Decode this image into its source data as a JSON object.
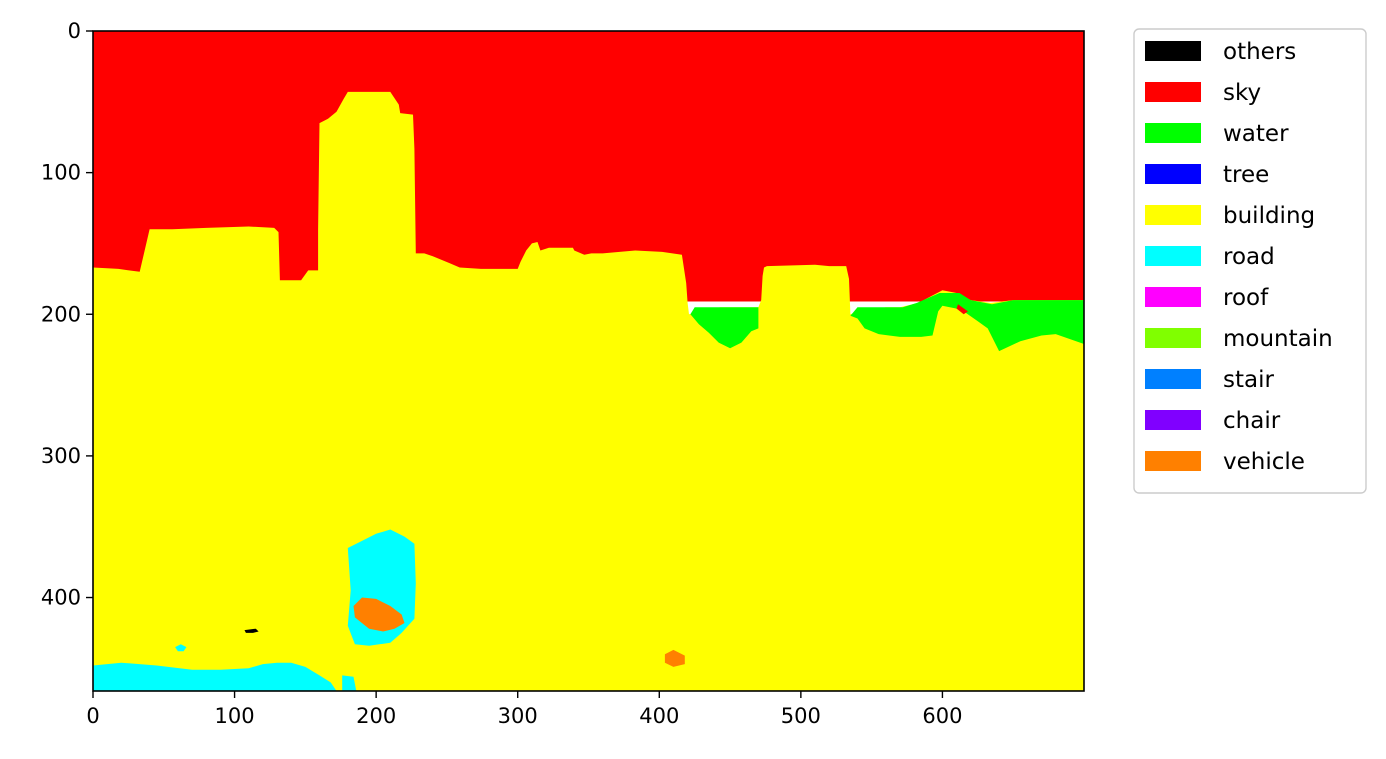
{
  "chart_data": {
    "type": "heatmap",
    "title": "",
    "xlabel": "",
    "ylabel": "",
    "xlim": [
      0,
      700
    ],
    "ylim": [
      466,
      0
    ],
    "y_axis_inverted": true,
    "grid": false,
    "legend_placement": "outside-right-top",
    "x_ticks": [
      "0",
      "100",
      "200",
      "300",
      "400",
      "500",
      "600"
    ],
    "y_ticks": [
      "0",
      "100",
      "200",
      "300",
      "400"
    ],
    "classes": [
      {
        "name": "others",
        "color": "#000000"
      },
      {
        "name": "sky",
        "color": "#ff0000"
      },
      {
        "name": "water",
        "color": "#00ff00"
      },
      {
        "name": "tree",
        "color": "#0000ff"
      },
      {
        "name": "building",
        "color": "#ffff00"
      },
      {
        "name": "road",
        "color": "#00ffff"
      },
      {
        "name": "roof",
        "color": "#ff00ff"
      },
      {
        "name": "mountain",
        "color": "#80ff00"
      },
      {
        "name": "stair",
        "color": "#0080ff"
      },
      {
        "name": "chair",
        "color": "#8000ff"
      },
      {
        "name": "vehicle",
        "color": "#ff8000"
      }
    ],
    "regions": [
      {
        "class": "sky",
        "points": [
          [
            0,
            0
          ],
          [
            700,
            0
          ],
          [
            700,
            191
          ],
          [
            0,
            191
          ]
        ]
      },
      {
        "class": "building",
        "points": [
          [
            0,
            167
          ],
          [
            18,
            168
          ],
          [
            33,
            170
          ],
          [
            40,
            140
          ],
          [
            56,
            140
          ],
          [
            80,
            139
          ],
          [
            110,
            138
          ],
          [
            128,
            139
          ],
          [
            131,
            142
          ],
          [
            132,
            176
          ],
          [
            147,
            176
          ],
          [
            152,
            169
          ],
          [
            159,
            169
          ],
          [
            159,
            140
          ],
          [
            160,
            65
          ],
          [
            166,
            62
          ],
          [
            172,
            57
          ],
          [
            177,
            48
          ],
          [
            180,
            43
          ],
          [
            210,
            43
          ],
          [
            216,
            52
          ],
          [
            217,
            58
          ],
          [
            226,
            59
          ],
          [
            227,
            83
          ],
          [
            228,
            157
          ],
          [
            234,
            157
          ],
          [
            240,
            159
          ],
          [
            252,
            164
          ],
          [
            259,
            167
          ],
          [
            274,
            168
          ],
          [
            298,
            168
          ],
          [
            300,
            168
          ],
          [
            302,
            163
          ],
          [
            306,
            155
          ],
          [
            310,
            150
          ],
          [
            314,
            149
          ],
          [
            316,
            155
          ],
          [
            322,
            153
          ],
          [
            339,
            153
          ],
          [
            340,
            155
          ],
          [
            347,
            158
          ],
          [
            352,
            157
          ],
          [
            360,
            157
          ],
          [
            372,
            156
          ],
          [
            383,
            155
          ],
          [
            402,
            156
          ],
          [
            416,
            158
          ],
          [
            419,
            178
          ],
          [
            420,
            192
          ],
          [
            421,
            200
          ],
          [
            443,
            195
          ],
          [
            462,
            195
          ],
          [
            470,
            195
          ],
          [
            472,
            190
          ],
          [
            473,
            173
          ],
          [
            474,
            167
          ],
          [
            476,
            166
          ],
          [
            510,
            165
          ],
          [
            520,
            166
          ],
          [
            532,
            166
          ],
          [
            534,
            175
          ],
          [
            535,
            200
          ],
          [
            541,
            198
          ],
          [
            560,
            195
          ],
          [
            570,
            195
          ],
          [
            583,
            192
          ],
          [
            600,
            183
          ],
          [
            610,
            185
          ],
          [
            620,
            190
          ],
          [
            634,
            192
          ],
          [
            650,
            190
          ],
          [
            700,
            190
          ],
          [
            700,
            466
          ],
          [
            0,
            466
          ]
        ]
      },
      {
        "class": "water",
        "points": [
          [
            425,
            195
          ],
          [
            440,
            195
          ],
          [
            460,
            195
          ],
          [
            470,
            195
          ],
          [
            470,
            210
          ],
          [
            465,
            212
          ],
          [
            458,
            220
          ],
          [
            450,
            224
          ],
          [
            442,
            220
          ],
          [
            435,
            213
          ],
          [
            428,
            207
          ],
          [
            422,
            200
          ]
        ]
      },
      {
        "class": "water",
        "points": [
          [
            535,
            201
          ],
          [
            540,
            195
          ],
          [
            560,
            195
          ],
          [
            572,
            195
          ],
          [
            582,
            192
          ],
          [
            598,
            185
          ],
          [
            612,
            185
          ],
          [
            620,
            190
          ],
          [
            635,
            193
          ],
          [
            650,
            190
          ],
          [
            700,
            190
          ],
          [
            700,
            221
          ],
          [
            680,
            214
          ],
          [
            670,
            215
          ],
          [
            655,
            219
          ],
          [
            640,
            226
          ],
          [
            632,
            210
          ],
          [
            625,
            205
          ],
          [
            615,
            198
          ],
          [
            610,
            196
          ],
          [
            600,
            194
          ],
          [
            597,
            198
          ],
          [
            593,
            215
          ],
          [
            585,
            216
          ],
          [
            570,
            216
          ],
          [
            555,
            214
          ],
          [
            545,
            210
          ],
          [
            540,
            203
          ]
        ]
      },
      {
        "class": "sky",
        "points": [
          [
            611,
            193
          ],
          [
            618,
            198
          ],
          [
            615,
            200
          ],
          [
            610,
            196
          ]
        ]
      },
      {
        "class": "road",
        "points": [
          [
            180,
            365
          ],
          [
            190,
            360
          ],
          [
            200,
            355
          ],
          [
            210,
            352
          ],
          [
            220,
            357
          ],
          [
            227,
            362
          ],
          [
            228,
            390
          ],
          [
            227,
            415
          ],
          [
            218,
            425
          ],
          [
            210,
            432
          ],
          [
            195,
            434
          ],
          [
            185,
            433
          ],
          [
            180,
            420
          ],
          [
            182,
            395
          ]
        ]
      },
      {
        "class": "road",
        "points": [
          [
            0,
            448
          ],
          [
            20,
            446
          ],
          [
            45,
            448
          ],
          [
            70,
            451
          ],
          [
            90,
            451
          ],
          [
            110,
            450
          ],
          [
            120,
            447
          ],
          [
            130,
            446
          ],
          [
            140,
            446
          ],
          [
            150,
            449
          ],
          [
            160,
            455
          ],
          [
            168,
            460
          ],
          [
            172,
            466
          ],
          [
            0,
            466
          ]
        ]
      },
      {
        "class": "road",
        "points": [
          [
            58,
            435
          ],
          [
            62,
            433
          ],
          [
            66,
            435
          ],
          [
            64,
            438
          ],
          [
            60,
            438
          ]
        ]
      },
      {
        "class": "road",
        "points": [
          [
            176,
            455
          ],
          [
            184,
            456
          ],
          [
            186,
            466
          ],
          [
            176,
            466
          ]
        ]
      },
      {
        "class": "vehicle",
        "points": [
          [
            184,
            406
          ],
          [
            190,
            400
          ],
          [
            200,
            401
          ],
          [
            210,
            406
          ],
          [
            218,
            412
          ],
          [
            220,
            418
          ],
          [
            213,
            422
          ],
          [
            205,
            424
          ],
          [
            195,
            422
          ],
          [
            185,
            414
          ]
        ]
      },
      {
        "class": "vehicle",
        "points": [
          [
            404,
            440
          ],
          [
            410,
            437
          ],
          [
            418,
            441
          ],
          [
            418,
            447
          ],
          [
            410,
            449
          ],
          [
            404,
            446
          ]
        ]
      },
      {
        "class": "others",
        "points": [
          [
            107,
            423
          ],
          [
            115,
            422
          ],
          [
            117,
            424
          ],
          [
            113,
            425
          ],
          [
            108,
            425
          ]
        ]
      }
    ]
  }
}
